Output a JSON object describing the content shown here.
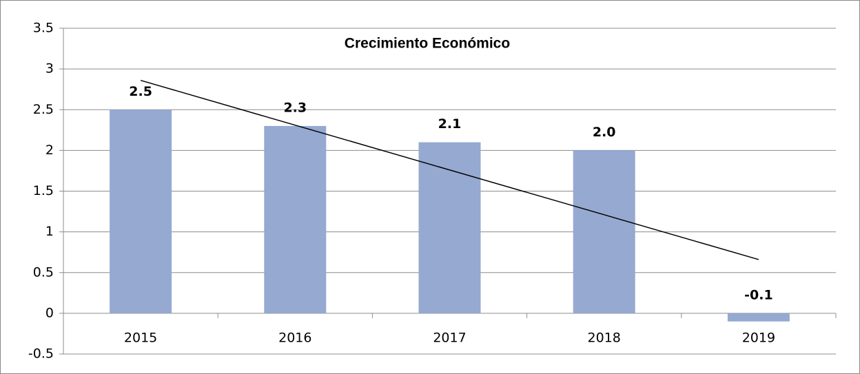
{
  "chart_data": {
    "type": "bar",
    "title": "Crecimiento Económico",
    "categories": [
      "2015",
      "2016",
      "2017",
      "2018",
      "2019"
    ],
    "values": [
      2.5,
      2.3,
      2.1,
      2.0,
      -0.1
    ],
    "value_labels": [
      "2.5",
      "2.3",
      "2.1",
      "2.0",
      "-0.1"
    ],
    "color": "#95a9d1",
    "ylim": [
      -0.5,
      3.5
    ],
    "yticks": [
      -0.5,
      0,
      0.5,
      1,
      1.5,
      2,
      2.5,
      3,
      3.5
    ],
    "grid": true,
    "trendline": "linear"
  }
}
